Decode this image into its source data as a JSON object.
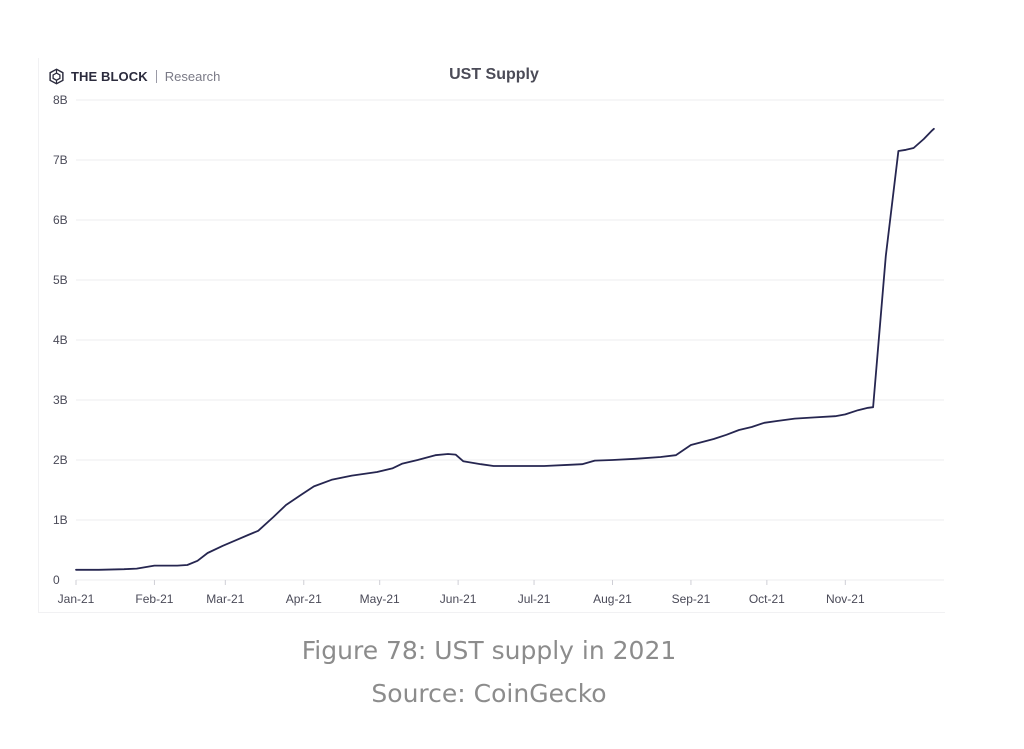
{
  "brand": {
    "name": "THE BLOCK",
    "sub": "Research",
    "icon": "the-block-logo-icon"
  },
  "figure": {
    "caption": "Figure 78: UST supply in 2021",
    "source": "Source: CoinGecko"
  },
  "colors": {
    "line": "#262650",
    "grid": "#ececef",
    "axis_text": "#4a4a58",
    "caption": "#8c8c8c"
  },
  "chart_data": {
    "type": "line",
    "title": "UST Supply",
    "xlabel": "",
    "ylabel": "",
    "x_tick_labels": [
      "Jan-21",
      "Feb-21",
      "Mar-21",
      "Apr-21",
      "May-21",
      "Jun-21",
      "Jul-21",
      "Aug-21",
      "Sep-21",
      "Oct-21",
      "Nov-21"
    ],
    "y_tick_labels": [
      "0",
      "1B",
      "2B",
      "3B",
      "4B",
      "5B",
      "6B",
      "7B",
      "8B"
    ],
    "ylim": [
      0,
      8000000000
    ],
    "xlim": [
      "2021-01-01",
      "2021-12-10"
    ],
    "grid": "horizontal",
    "legend": "none",
    "series": [
      {
        "name": "",
        "points": [
          [
            "2021-01-01",
            170000000.0
          ],
          [
            "2021-01-10",
            170000000.0
          ],
          [
            "2021-01-20",
            180000000.0
          ],
          [
            "2021-01-25",
            190000000.0
          ],
          [
            "2021-02-01",
            240000000.0
          ],
          [
            "2021-02-10",
            240000000.0
          ],
          [
            "2021-02-14",
            250000000.0
          ],
          [
            "2021-02-18",
            320000000.0
          ],
          [
            "2021-02-22",
            450000000.0
          ],
          [
            "2021-02-28",
            570000000.0
          ],
          [
            "2021-03-05",
            660000000.0
          ],
          [
            "2021-03-10",
            750000000.0
          ],
          [
            "2021-03-14",
            820000000.0
          ],
          [
            "2021-03-20",
            1050000000.0
          ],
          [
            "2021-03-25",
            1250000000.0
          ],
          [
            "2021-03-31",
            1420000000.0
          ],
          [
            "2021-04-05",
            1560000000.0
          ],
          [
            "2021-04-12",
            1670000000.0
          ],
          [
            "2021-04-20",
            1740000000.0
          ],
          [
            "2021-04-30",
            1800000000.0
          ],
          [
            "2021-05-06",
            1860000000.0
          ],
          [
            "2021-05-10",
            1940000000.0
          ],
          [
            "2021-05-16",
            2000000000.0
          ],
          [
            "2021-05-23",
            2080000000.0
          ],
          [
            "2021-05-28",
            2100000000.0
          ],
          [
            "2021-05-31",
            2090000000.0
          ],
          [
            "2021-06-03",
            1980000000.0
          ],
          [
            "2021-06-10",
            1930000000.0
          ],
          [
            "2021-06-15",
            1900000000.0
          ],
          [
            "2021-06-25",
            1900000000.0
          ],
          [
            "2021-07-05",
            1900000000.0
          ],
          [
            "2021-07-15",
            1920000000.0
          ],
          [
            "2021-07-20",
            1930000000.0
          ],
          [
            "2021-07-25",
            1990000000.0
          ],
          [
            "2021-08-01",
            2000000000.0
          ],
          [
            "2021-08-10",
            2020000000.0
          ],
          [
            "2021-08-20",
            2050000000.0
          ],
          [
            "2021-08-26",
            2080000000.0
          ],
          [
            "2021-09-01",
            2250000000.0
          ],
          [
            "2021-09-10",
            2350000000.0
          ],
          [
            "2021-09-15",
            2420000000.0
          ],
          [
            "2021-09-20",
            2500000000.0
          ],
          [
            "2021-09-25",
            2550000000.0
          ],
          [
            "2021-09-30",
            2620000000.0
          ],
          [
            "2021-10-05",
            2650000000.0
          ],
          [
            "2021-10-12",
            2690000000.0
          ],
          [
            "2021-10-20",
            2710000000.0
          ],
          [
            "2021-10-28",
            2730000000.0
          ],
          [
            "2021-11-01",
            2760000000.0
          ],
          [
            "2021-11-06",
            2830000000.0
          ],
          [
            "2021-11-10",
            2870000000.0
          ],
          [
            "2021-11-12",
            2880000000.0
          ],
          [
            "2021-11-17",
            5400000000.0
          ],
          [
            "2021-11-22",
            7150000000.0
          ],
          [
            "2021-11-25",
            7170000000.0
          ],
          [
            "2021-11-28",
            7200000000.0
          ],
          [
            "2021-12-02",
            7350000000.0
          ],
          [
            "2021-12-05",
            7480000000.0
          ],
          [
            "2021-12-06",
            7520000000.0
          ]
        ]
      }
    ]
  }
}
